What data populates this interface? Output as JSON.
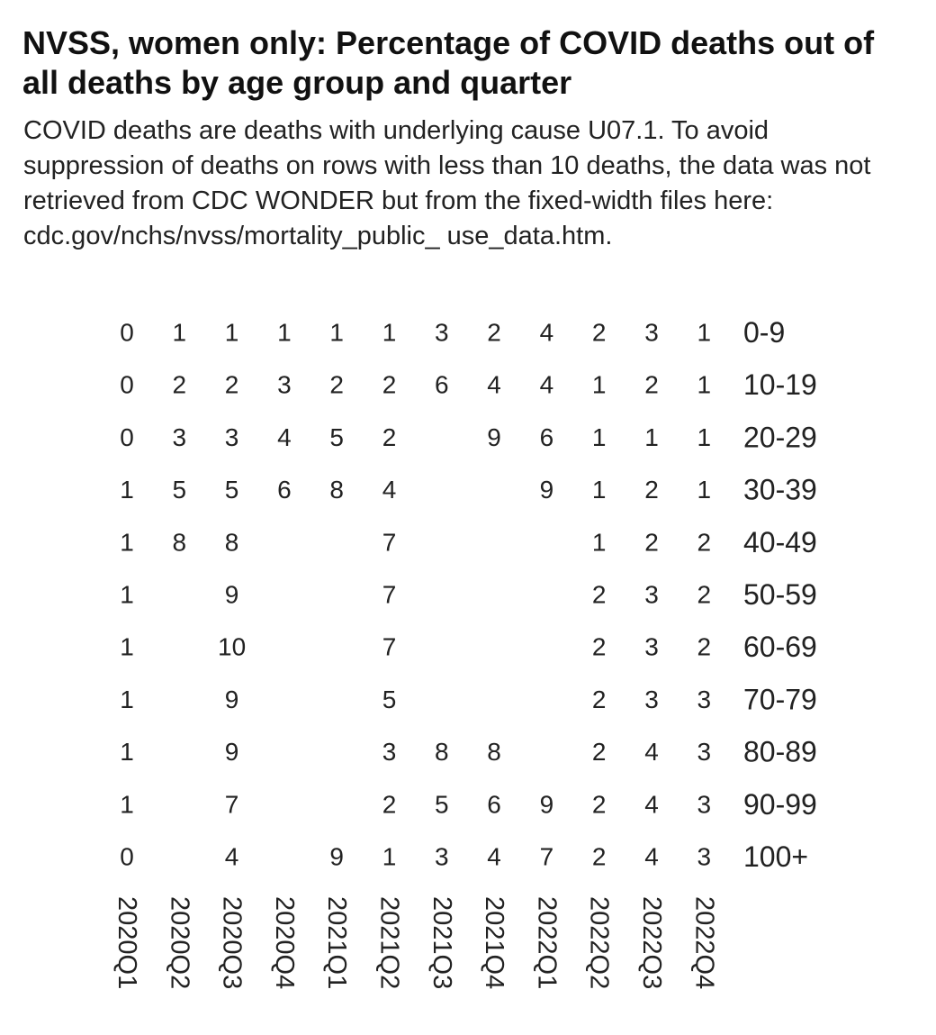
{
  "chart_data": {
    "type": "table",
    "title": "NVSS, women only: Percentage of COVID deaths out of all deaths by age group and quarter",
    "subtitle": "COVID deaths are deaths with underlying cause U07.1. To avoid suppression of deaths on rows with less than 10 deaths, the data was not retrieved from CDC WONDER but from the fixed-width files here: cdc.gov/nchs/nvss/mortality_public_ use_data.htm.",
    "columns": [
      "2020Q1",
      "2020Q2",
      "2020Q3",
      "2020Q4",
      "2021Q1",
      "2021Q2",
      "2021Q3",
      "2021Q4",
      "2022Q1",
      "2022Q2",
      "2022Q3",
      "2022Q4"
    ],
    "rows": [
      {
        "label": "0-9",
        "values": [
          0,
          1,
          1,
          1,
          1,
          1,
          3,
          2,
          4,
          2,
          3,
          1
        ]
      },
      {
        "label": "10-19",
        "values": [
          0,
          2,
          2,
          3,
          2,
          2,
          6,
          4,
          4,
          1,
          2,
          1
        ]
      },
      {
        "label": "20-29",
        "values": [
          0,
          3,
          3,
          4,
          5,
          2,
          null,
          9,
          6,
          1,
          1,
          1
        ]
      },
      {
        "label": "30-39",
        "values": [
          1,
          5,
          5,
          6,
          8,
          4,
          null,
          null,
          9,
          1,
          2,
          1
        ]
      },
      {
        "label": "40-49",
        "values": [
          1,
          8,
          8,
          null,
          null,
          7,
          null,
          null,
          null,
          1,
          2,
          2
        ]
      },
      {
        "label": "50-59",
        "values": [
          1,
          null,
          9,
          null,
          null,
          7,
          null,
          null,
          null,
          2,
          3,
          2
        ]
      },
      {
        "label": "60-69",
        "values": [
          1,
          null,
          10,
          null,
          null,
          7,
          null,
          null,
          null,
          2,
          3,
          2
        ]
      },
      {
        "label": "70-79",
        "values": [
          1,
          null,
          9,
          null,
          null,
          5,
          null,
          null,
          null,
          2,
          3,
          3
        ]
      },
      {
        "label": "80-89",
        "values": [
          1,
          null,
          9,
          null,
          null,
          3,
          8,
          8,
          null,
          2,
          4,
          3
        ]
      },
      {
        "label": "90-99",
        "values": [
          1,
          null,
          7,
          null,
          null,
          2,
          5,
          6,
          9,
          2,
          4,
          3
        ]
      },
      {
        "label": "100+",
        "values": [
          0,
          null,
          4,
          null,
          9,
          1,
          3,
          4,
          7,
          2,
          4,
          3
        ]
      }
    ]
  }
}
